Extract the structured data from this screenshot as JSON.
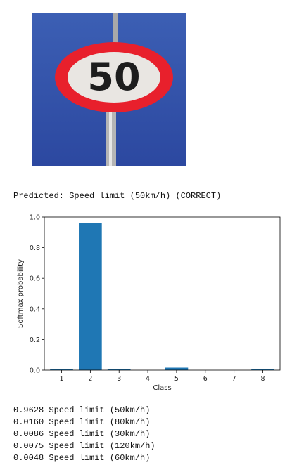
{
  "prediction": {
    "text": "Predicted: Speed limit (50km/h) (CORRECT)"
  },
  "sign_image": {
    "digits": "50",
    "colors": {
      "background": "#3452a8",
      "ring": "#e8202c",
      "face": "#e9e6e2",
      "digit": "#1d1d1d",
      "pole": "#a9a9a9"
    }
  },
  "chart_data": {
    "type": "bar",
    "categories": [
      "1",
      "2",
      "3",
      "4",
      "5",
      "6",
      "7",
      "8"
    ],
    "values": [
      0.0075,
      0.9628,
      0.0048,
      0.0,
      0.016,
      0.0,
      0.0,
      0.0086
    ],
    "ylim": [
      0,
      1.0
    ],
    "yticks": [
      "0.0",
      "0.2",
      "0.4",
      "0.6",
      "0.8",
      "1.0"
    ],
    "xlabel": "Class",
    "ylabel": "Softmax probability",
    "bar_color": "#1f77b4",
    "grid": false
  },
  "top_predictions": [
    {
      "text": "0.9628 Speed limit (50km/h)"
    },
    {
      "text": "0.0160 Speed limit (80km/h)"
    },
    {
      "text": "0.0086 Speed limit (30km/h)"
    },
    {
      "text": "0.0075 Speed limit (120km/h)"
    },
    {
      "text": "0.0048 Speed limit (60km/h)"
    }
  ]
}
